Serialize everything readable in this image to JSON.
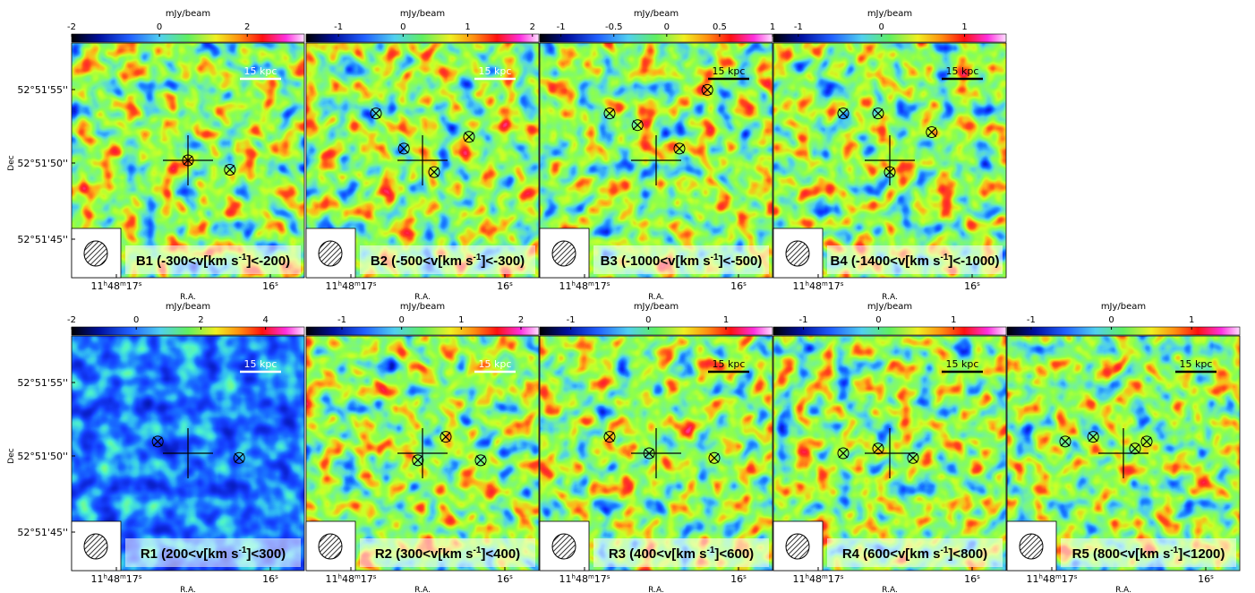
{
  "axis_labels": {
    "colorbar": "mJy/beam",
    "y": "Dec",
    "x": "R.A."
  },
  "scale_bar": "15 kpc",
  "dec_ticks": [
    "52°51'55''",
    "52°51'50''",
    "52°51'45''"
  ],
  "ra_ticks": [
    [
      "11",
      "h",
      "48",
      "m",
      "17",
      "s"
    ],
    [
      "16",
      "s"
    ]
  ],
  "panels": [
    {
      "label": [
        "B1 (-300<v[km s",
        "-1",
        "]<-200)"
      ],
      "clim": [
        -2,
        3.3
      ],
      "cticks": [
        -2,
        0,
        2
      ]
    },
    {
      "label": [
        "B2 (-500<v[km s",
        "-1",
        "]<-300)"
      ],
      "clim": [
        -1.5,
        2.1
      ],
      "cticks": [
        -1,
        0,
        1,
        2
      ]
    },
    {
      "label": [
        "B3 (-1000<v[km s",
        "-1",
        "]<-500)"
      ],
      "clim": [
        -1.2,
        1.0
      ],
      "cticks": [
        -1,
        -0.5,
        0,
        0.5,
        1
      ]
    },
    {
      "label": [
        "B4 (-1400<v[km s",
        "-1",
        "]<-1000)"
      ],
      "clim": [
        -1.3,
        1.5
      ],
      "cticks": [
        -1,
        0,
        1
      ]
    },
    {
      "label": [
        "R1 (200<v[km s",
        "-1",
        "]<300)"
      ],
      "clim": [
        -2,
        5.2
      ],
      "cticks": [
        -2,
        0,
        2,
        4
      ]
    },
    {
      "label": [
        "R2 (300<v[km s",
        "-1",
        "]<400)"
      ],
      "clim": [
        -1.6,
        2.3
      ],
      "cticks": [
        -1,
        0,
        1,
        2
      ]
    },
    {
      "label": [
        "R3 (400<v[km s",
        "-1",
        "]<600)"
      ],
      "clim": [
        -1.4,
        1.6
      ],
      "cticks": [
        -1,
        0,
        1
      ]
    },
    {
      "label": [
        "R4 (600<v[km s",
        "-1",
        "]<800)"
      ],
      "clim": [
        -1.4,
        1.7
      ],
      "cticks": [
        -1,
        0,
        1
      ]
    },
    {
      "label": [
        "R5 (800<v[km s",
        "-1",
        "]<1200)"
      ],
      "clim": [
        -1.3,
        1.6
      ],
      "cticks": [
        -1,
        0,
        1
      ]
    }
  ]
}
